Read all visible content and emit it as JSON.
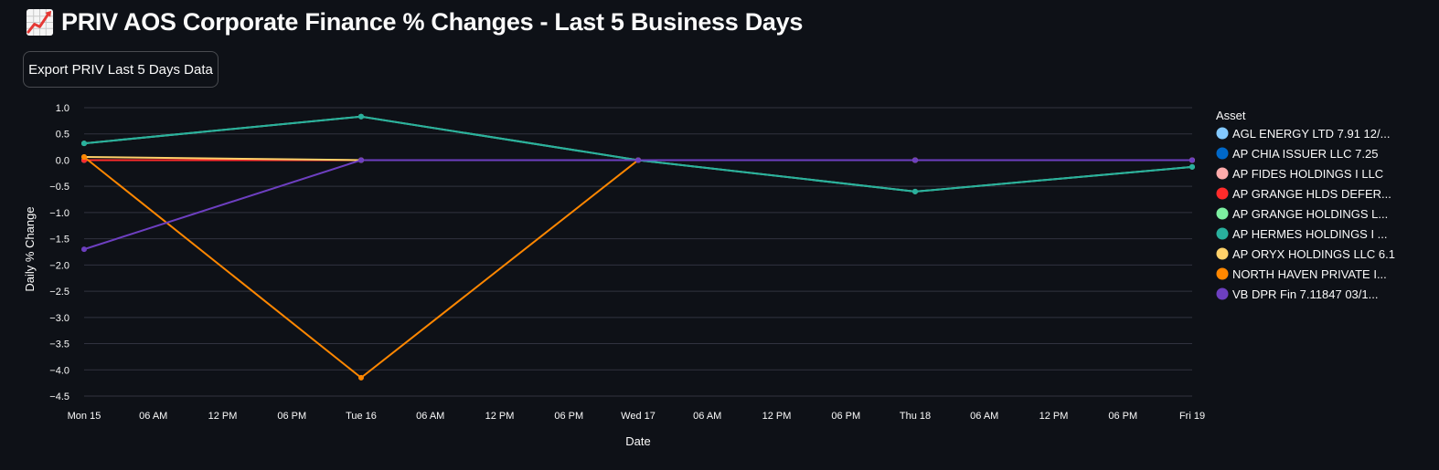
{
  "header": {
    "title_icon": "chart-increasing-icon",
    "title": "PRIV AOS Corporate Finance % Changes - Last 5 Business Days"
  },
  "toolbar": {
    "export_label": "Export PRIV Last 5 Days Data"
  },
  "chart_data": {
    "type": "line",
    "title": "",
    "xlabel": "Date",
    "ylabel": "Daily % Change",
    "ylim": [
      -4.5,
      1.0
    ],
    "yticks": [
      1.0,
      0.5,
      0.0,
      -0.5,
      -1.0,
      -1.5,
      -2.0,
      -2.5,
      -3.0,
      -3.5,
      -4.0,
      -4.5
    ],
    "ytick_labels": [
      "1.0",
      "0.5",
      "0.0",
      "−0.5",
      "−1.0",
      "−1.5",
      "−2.0",
      "−2.5",
      "−3.0",
      "−3.5",
      "−4.0",
      "−4.5"
    ],
    "x_range_hours": [
      0,
      96
    ],
    "x": [
      "Mon 15",
      "Tue 16",
      "Wed 17",
      "Thu 18",
      "Fri 19"
    ],
    "x_hours": [
      0,
      24,
      48,
      72,
      96
    ],
    "xticks": [
      {
        "h": 0,
        "label": "Mon 15"
      },
      {
        "h": 6,
        "label": "06 AM"
      },
      {
        "h": 12,
        "label": "12 PM"
      },
      {
        "h": 18,
        "label": "06 PM"
      },
      {
        "h": 24,
        "label": "Tue 16"
      },
      {
        "h": 30,
        "label": "06 AM"
      },
      {
        "h": 36,
        "label": "12 PM"
      },
      {
        "h": 42,
        "label": "06 PM"
      },
      {
        "h": 48,
        "label": "Wed 17"
      },
      {
        "h": 54,
        "label": "06 AM"
      },
      {
        "h": 60,
        "label": "12 PM"
      },
      {
        "h": 66,
        "label": "06 PM"
      },
      {
        "h": 72,
        "label": "Thu 18"
      },
      {
        "h": 78,
        "label": "06 AM"
      },
      {
        "h": 84,
        "label": "12 PM"
      },
      {
        "h": 90,
        "label": "06 PM"
      },
      {
        "h": 96,
        "label": "Fri 19"
      }
    ],
    "grid": true,
    "legend_title": "Asset",
    "legend_position": "right",
    "series": [
      {
        "name": "AGL ENERGY LTD 7.91 12/...",
        "color": "#83c9ff",
        "values": [
          0.0,
          0.0,
          0.0,
          0.0,
          0.0
        ]
      },
      {
        "name": "AP CHIA ISSUER LLC 7.25",
        "color": "#0068c9",
        "values": [
          0.0,
          0.0,
          0.0,
          0.0,
          0.0
        ]
      },
      {
        "name": "AP FIDES HOLDINGS I LLC",
        "color": "#ffabab",
        "values": [
          0.0,
          0.0,
          0.0,
          0.0,
          0.0
        ]
      },
      {
        "name": "AP GRANGE HLDS DEFER...",
        "color": "#ff2b2b",
        "values": [
          0.0,
          0.0,
          0.0,
          0.0,
          0.0
        ]
      },
      {
        "name": "AP GRANGE HOLDINGS L...",
        "color": "#7defa1",
        "values": [
          0.32,
          0.83,
          0.0,
          -0.6,
          -0.13
        ]
      },
      {
        "name": "AP HERMES HOLDINGS I ...",
        "color": "#29b09d",
        "values": [
          0.32,
          0.83,
          0.0,
          -0.6,
          -0.13
        ]
      },
      {
        "name": "AP ORYX HOLDINGS LLC 6.1",
        "color": "#ffd16a",
        "values": [
          0.06,
          0.0,
          0.0,
          0.0,
          0.0
        ]
      },
      {
        "name": "NORTH HAVEN PRIVATE I...",
        "color": "#ff8700",
        "values": [
          0.06,
          -4.15,
          0.0,
          null,
          null
        ]
      },
      {
        "name": "VB DPR Fin 7.11847 03/1...",
        "color": "#6d3fc0",
        "values": [
          -1.7,
          0.0,
          0.0,
          0.0,
          0.0
        ]
      }
    ]
  },
  "colors": {
    "background": "#0e1117",
    "text": "#fafafa",
    "grid": "#31333f"
  }
}
